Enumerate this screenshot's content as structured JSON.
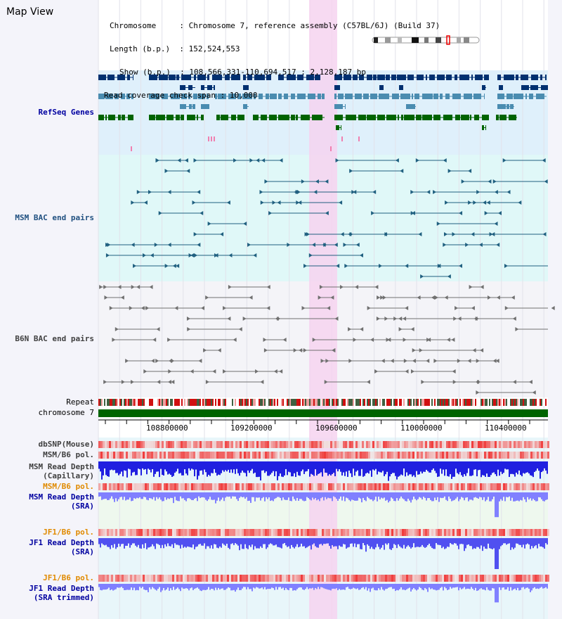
{
  "page": {
    "title": "Map View"
  },
  "info": {
    "chromosome_key": "Chromosome",
    "chromosome_val": ": Chromosome 7, reference assembly (C57BL/6J) (Build 37)",
    "length_key": "Length (b.p.)",
    "length_val": ": 152,524,553",
    "show_key": "Show (b.p.)",
    "show_val": ": 108,566,331-110,694,517 : 2,128,187 bp",
    "coverage_key": "Read coverage check span",
    "coverage_val": ": 10,000"
  },
  "tracks": {
    "refseq": "RefSeq Genes",
    "msm_bac": "MSM BAC end pairs",
    "b6n_bac": "B6N BAC end pairs",
    "repeat": "Repeat",
    "chromosome": "chromosome 7",
    "dbsnp": "dbSNP(Mouse)",
    "msm_b6_pol_1": "MSM/B6 pol.",
    "msm_depth_cap_1": "MSM Read Depth",
    "msm_depth_cap_2": "(Capillary)",
    "msm_b6_pol_2": "MSM/B6 pol.",
    "msm_depth_sra_1": "MSM Read Depth",
    "msm_depth_sra_2": "(SRA)",
    "jf1_b6_pol_1": "JF1/B6 pol.",
    "jf1_depth_sra_1": "JF1 Read Depth",
    "jf1_depth_sra_2": "(SRA)",
    "jf1_b6_pol_2": "JF1/B6 pol.",
    "jf1_depth_trim_1": "JF1 Read Depth",
    "jf1_depth_trim_2": "(SRA trimmed)"
  },
  "axis": {
    "ticks": [
      "108800000",
      "109200000",
      "109600000",
      "110000000",
      "110400000"
    ]
  },
  "colors": {
    "refseq_bg": "#dff0fb",
    "msm_bg": "#e0f8f8",
    "b6n_bg": "#f4f4f8",
    "highlight": "#f6d4f0",
    "chromosome": "#006400",
    "refseq_dark": "#003070",
    "refseq_mid": "#4a8cb0",
    "refseq_green": "#006400",
    "msm_pair": "#206080",
    "b6n_pair": "#707070",
    "depth_blue": "#2020e0",
    "depth_light": "#8080ff"
  }
}
